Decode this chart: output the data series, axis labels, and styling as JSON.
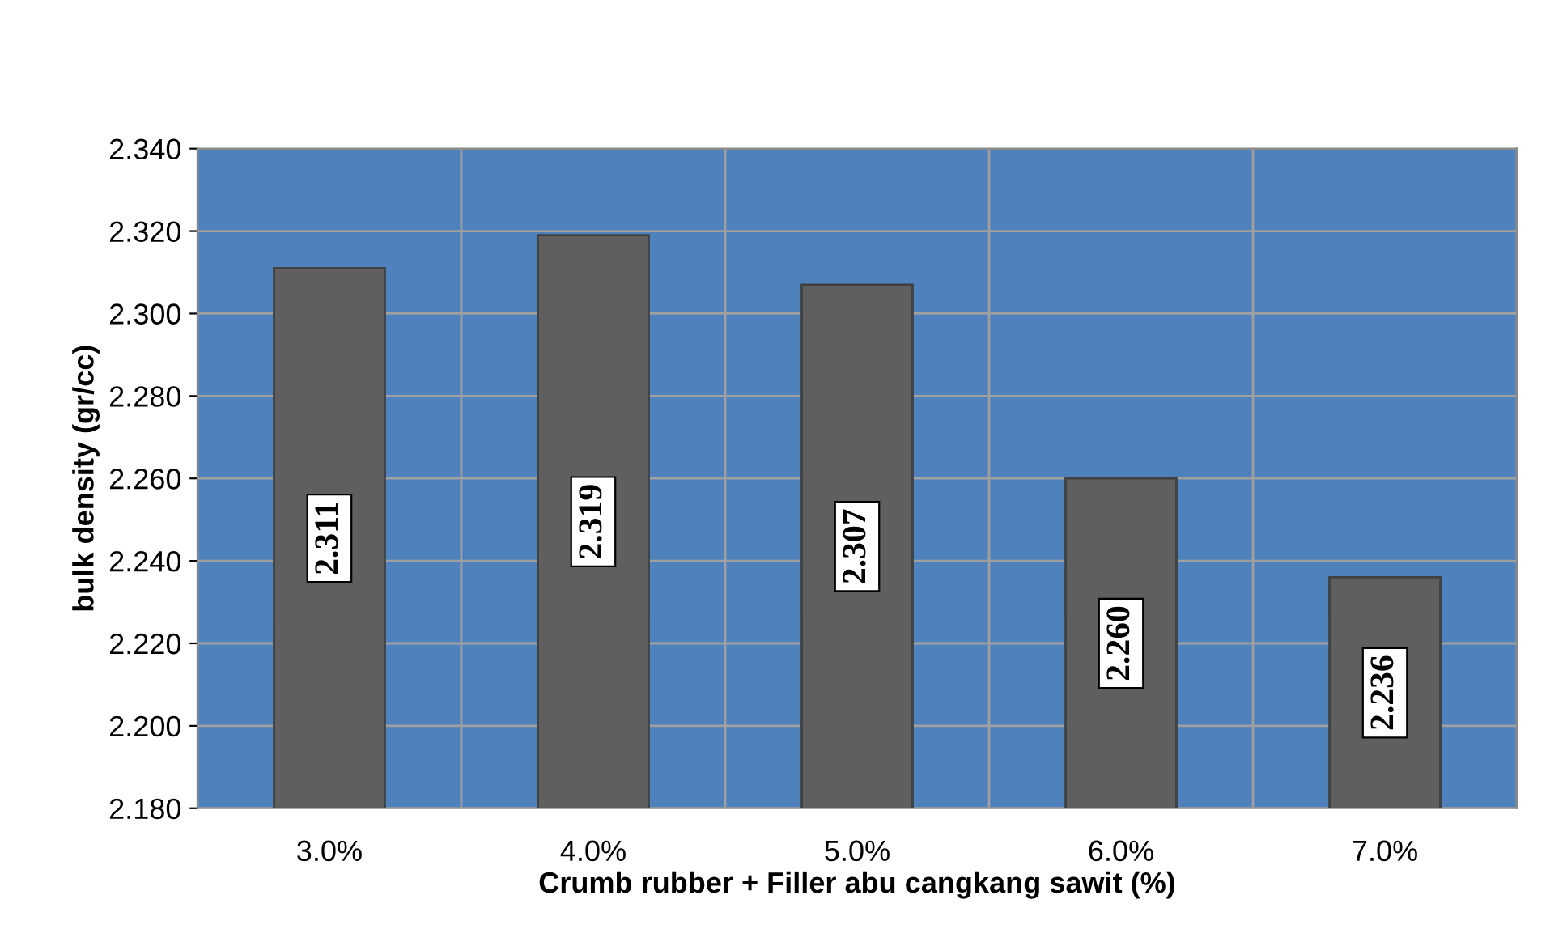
{
  "chart_data": {
    "type": "bar",
    "categories": [
      "3.0%",
      "4.0%",
      "5.0%",
      "6.0%",
      "7.0%"
    ],
    "values": [
      2.311,
      2.319,
      2.307,
      2.26,
      2.236
    ],
    "color": "#5f5f5f",
    "xlabel": "Crumb rubber + Filler abu cangkang sawit (%)",
    "ylabel": "bulk density (gr/cc)",
    "ylim": [
      2.18,
      2.34
    ],
    "yticks": [
      {
        "value": 2.18,
        "label": "2.180"
      },
      {
        "value": 2.2,
        "label": "2.200"
      },
      {
        "value": 2.22,
        "label": "2.220"
      },
      {
        "value": 2.24,
        "label": "2.240"
      },
      {
        "value": 2.26,
        "label": "2.260"
      },
      {
        "value": 2.28,
        "label": "2.280"
      },
      {
        "value": 2.3,
        "label": "2.300"
      },
      {
        "value": 2.32,
        "label": "2.320"
      },
      {
        "value": 2.34,
        "label": "2.340"
      }
    ],
    "grid": true,
    "value_labels": [
      "2.311",
      "2.319",
      "2.307",
      "2.260",
      "2.236"
    ],
    "legend": false
  }
}
